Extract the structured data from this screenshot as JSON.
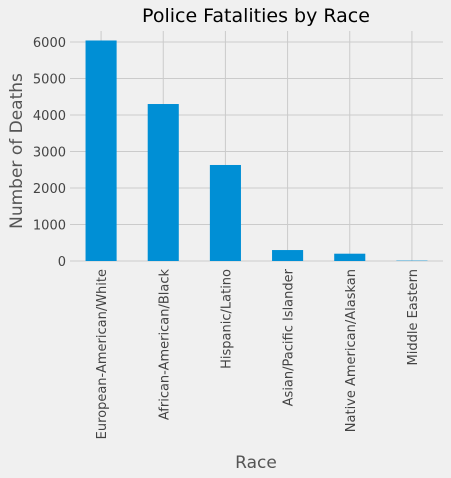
{
  "chart_data": {
    "type": "bar",
    "title": "Police Fatalities by Race",
    "xlabel": "Race",
    "ylabel": "Number of Deaths",
    "categories": [
      "European-American/White",
      "African-American/Black",
      "Hispanic/Latino",
      "Asian/Pacific Islander",
      "Native American/Alaskan",
      "Middle Eastern"
    ],
    "values": [
      6040,
      4300,
      2630,
      300,
      200,
      10
    ],
    "ylim": [
      0,
      6300
    ],
    "yticks": [
      0,
      1000,
      2000,
      3000,
      4000,
      5000,
      6000
    ],
    "grid": true,
    "bar_color": "#008fd5",
    "background_color": "#f0f0f0"
  }
}
